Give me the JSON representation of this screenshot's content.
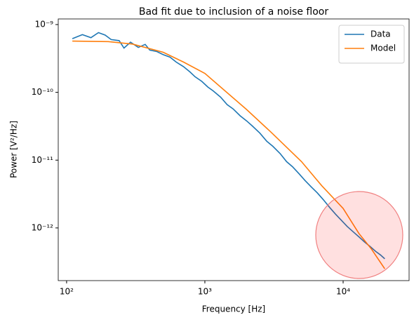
{
  "chart_data": {
    "type": "line",
    "title": "Bad fit due to inclusion of a noise floor",
    "xlabel": "Frequency [Hz]",
    "ylabel": "Power [V²/Hz]",
    "xscale": "log",
    "yscale": "log",
    "xlim": [
      87,
      30000
    ],
    "ylim": [
      1.67e-13,
      1.21e-09
    ],
    "xticks": [
      {
        "value": 100,
        "label": "10²"
      },
      {
        "value": 1000,
        "label": "10³"
      },
      {
        "value": 10000,
        "label": "10⁴"
      }
    ],
    "yticks": [
      {
        "value": 1e-12,
        "label": "10⁻¹²"
      },
      {
        "value": 1e-11,
        "label": "10⁻¹¹"
      },
      {
        "value": 1e-10,
        "label": "10⁻¹⁰"
      },
      {
        "value": 1e-09,
        "label": "10⁻⁹"
      }
    ],
    "legend": "upper right",
    "series": [
      {
        "name": "Data",
        "color": "#1f77b4",
        "x": [
          110,
          130,
          150,
          170,
          190,
          210,
          240,
          260,
          290,
          330,
          370,
          400,
          450,
          500,
          560,
          620,
          700,
          780,
          850,
          950,
          1050,
          1150,
          1300,
          1450,
          1600,
          1800,
          2000,
          2200,
          2500,
          2800,
          3100,
          3500,
          3900,
          4300,
          4800,
          5300,
          5900,
          6500,
          7200,
          8000,
          8800,
          9700,
          10700,
          11800,
          13000,
          14300,
          15700,
          17200,
          18600,
          20000
        ],
        "values": [
          6.2e-10,
          7.1e-10,
          6.4e-10,
          7.6e-10,
          7e-10,
          6e-10,
          5.8e-10,
          4.5e-10,
          5.5e-10,
          4.6e-10,
          5.1e-10,
          4.2e-10,
          4e-10,
          3.6e-10,
          3.3e-10,
          2.8e-10,
          2.4e-10,
          2e-10,
          1.7e-10,
          1.45e-10,
          1.2e-10,
          1.05e-10,
          8.5e-11,
          6.6e-11,
          5.7e-11,
          4.5e-11,
          3.8e-11,
          3.2e-11,
          2.5e-11,
          1.9e-11,
          1.6e-11,
          1.25e-11,
          9.5e-12,
          8e-12,
          6.3e-12,
          5e-12,
          4e-12,
          3.3e-12,
          2.6e-12,
          2e-12,
          1.6e-12,
          1.3e-12,
          1.05e-12,
          8.8e-13,
          7.4e-13,
          6.2e-13,
          5.3e-13,
          4.5e-13,
          4e-13,
          3.5e-13
        ]
      },
      {
        "name": "Model",
        "color": "#ff7f0e",
        "x": [
          110,
          200,
          300,
          500,
          700,
          1000,
          2000,
          3000,
          5000,
          7000,
          10000,
          13000,
          16000,
          20000
        ],
        "values": [
          5.7e-10,
          5.6e-10,
          5.15e-10,
          3.9e-10,
          2.8e-10,
          1.9e-10,
          5.6e-11,
          2.6e-11,
          9.5e-12,
          4.2e-12,
          1.94e-12,
          8.3e-13,
          4.9e-13,
          2.5e-13
        ]
      }
    ]
  }
}
